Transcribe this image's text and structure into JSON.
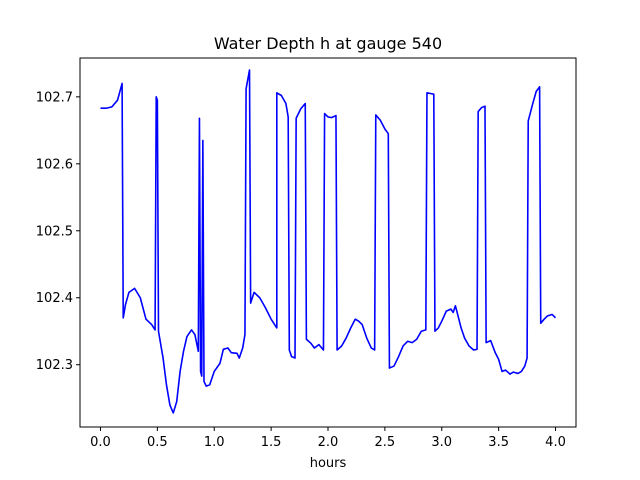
{
  "chart_data": {
    "type": "line",
    "title": "Water Depth h at gauge 540",
    "xlabel": "hours",
    "ylabel": "",
    "xlim": [
      -0.18,
      4.18
    ],
    "ylim": [
      102.207,
      102.758
    ],
    "xticks": [
      0.0,
      0.5,
      1.0,
      1.5,
      2.0,
      2.5,
      3.0,
      3.5,
      4.0
    ],
    "xtick_labels": [
      "0.0",
      "0.5",
      "1.0",
      "1.5",
      "2.0",
      "2.5",
      "3.0",
      "3.5",
      "4.0"
    ],
    "yticks": [
      102.3,
      102.4,
      102.5,
      102.6,
      102.7
    ],
    "ytick_labels": [
      "102.3",
      "102.4",
      "102.5",
      "102.6",
      "102.7"
    ],
    "grid": false,
    "series": [
      {
        "color": "#0000ff",
        "points": [
          [
            0.0,
            102.683
          ],
          [
            0.05,
            102.683
          ],
          [
            0.1,
            102.685
          ],
          [
            0.15,
            102.695
          ],
          [
            0.19,
            102.72
          ],
          [
            0.2,
            102.37
          ],
          [
            0.22,
            102.39
          ],
          [
            0.25,
            102.408
          ],
          [
            0.3,
            102.414
          ],
          [
            0.35,
            102.4
          ],
          [
            0.4,
            102.368
          ],
          [
            0.45,
            102.36
          ],
          [
            0.48,
            102.352
          ],
          [
            0.49,
            102.7
          ],
          [
            0.5,
            102.695
          ],
          [
            0.51,
            102.35
          ],
          [
            0.55,
            102.31
          ],
          [
            0.58,
            102.27
          ],
          [
            0.61,
            102.24
          ],
          [
            0.64,
            102.228
          ],
          [
            0.67,
            102.245
          ],
          [
            0.7,
            102.29
          ],
          [
            0.73,
            102.32
          ],
          [
            0.76,
            102.342
          ],
          [
            0.8,
            102.352
          ],
          [
            0.83,
            102.345
          ],
          [
            0.86,
            102.32
          ],
          [
            0.87,
            102.668
          ],
          [
            0.88,
            102.29
          ],
          [
            0.89,
            102.283
          ],
          [
            0.9,
            102.635
          ],
          [
            0.91,
            102.275
          ],
          [
            0.93,
            102.268
          ],
          [
            0.96,
            102.27
          ],
          [
            1.0,
            102.29
          ],
          [
            1.05,
            102.302
          ],
          [
            1.08,
            102.323
          ],
          [
            1.12,
            102.325
          ],
          [
            1.15,
            102.318
          ],
          [
            1.2,
            102.317
          ],
          [
            1.22,
            102.31
          ],
          [
            1.25,
            102.325
          ],
          [
            1.27,
            102.345
          ],
          [
            1.28,
            102.712
          ],
          [
            1.31,
            102.74
          ],
          [
            1.32,
            102.392
          ],
          [
            1.35,
            102.408
          ],
          [
            1.4,
            102.4
          ],
          [
            1.45,
            102.385
          ],
          [
            1.5,
            102.368
          ],
          [
            1.55,
            102.355
          ],
          [
            1.55,
            102.706
          ],
          [
            1.59,
            102.702
          ],
          [
            1.63,
            102.69
          ],
          [
            1.65,
            102.67
          ],
          [
            1.66,
            102.322
          ],
          [
            1.68,
            102.312
          ],
          [
            1.71,
            102.31
          ],
          [
            1.72,
            102.668
          ],
          [
            1.76,
            102.682
          ],
          [
            1.8,
            102.69
          ],
          [
            1.81,
            102.338
          ],
          [
            1.85,
            102.332
          ],
          [
            1.88,
            102.325
          ],
          [
            1.92,
            102.33
          ],
          [
            1.96,
            102.322
          ],
          [
            1.97,
            102.675
          ],
          [
            2.0,
            102.67
          ],
          [
            2.03,
            102.669
          ],
          [
            2.07,
            102.672
          ],
          [
            2.08,
            102.322
          ],
          [
            2.12,
            102.328
          ],
          [
            2.16,
            102.34
          ],
          [
            2.2,
            102.355
          ],
          [
            2.24,
            102.368
          ],
          [
            2.27,
            102.365
          ],
          [
            2.3,
            102.36
          ],
          [
            2.34,
            102.34
          ],
          [
            2.38,
            102.325
          ],
          [
            2.41,
            102.322
          ],
          [
            2.42,
            102.673
          ],
          [
            2.46,
            102.665
          ],
          [
            2.5,
            102.652
          ],
          [
            2.53,
            102.645
          ],
          [
            2.54,
            102.295
          ],
          [
            2.58,
            102.298
          ],
          [
            2.62,
            102.312
          ],
          [
            2.66,
            102.328
          ],
          [
            2.7,
            102.335
          ],
          [
            2.74,
            102.333
          ],
          [
            2.78,
            102.338
          ],
          [
            2.82,
            102.35
          ],
          [
            2.86,
            102.352
          ],
          [
            2.87,
            102.706
          ],
          [
            2.9,
            102.705
          ],
          [
            2.93,
            102.704
          ],
          [
            2.94,
            102.35
          ],
          [
            2.97,
            102.355
          ],
          [
            3.0,
            102.365
          ],
          [
            3.04,
            102.38
          ],
          [
            3.08,
            102.383
          ],
          [
            3.1,
            102.378
          ],
          [
            3.12,
            102.388
          ],
          [
            3.14,
            102.375
          ],
          [
            3.17,
            102.355
          ],
          [
            3.2,
            102.34
          ],
          [
            3.24,
            102.328
          ],
          [
            3.28,
            102.322
          ],
          [
            3.31,
            102.323
          ],
          [
            3.32,
            102.678
          ],
          [
            3.35,
            102.684
          ],
          [
            3.38,
            102.686
          ],
          [
            3.39,
            102.333
          ],
          [
            3.43,
            102.336
          ],
          [
            3.47,
            102.318
          ],
          [
            3.5,
            102.308
          ],
          [
            3.53,
            102.29
          ],
          [
            3.56,
            102.292
          ],
          [
            3.6,
            102.286
          ],
          [
            3.63,
            102.289
          ],
          [
            3.67,
            102.287
          ],
          [
            3.7,
            102.29
          ],
          [
            3.73,
            102.298
          ],
          [
            3.75,
            102.31
          ],
          [
            3.76,
            102.664
          ],
          [
            3.8,
            102.69
          ],
          [
            3.83,
            102.708
          ],
          [
            3.86,
            102.715
          ],
          [
            3.87,
            102.362
          ],
          [
            3.9,
            102.368
          ],
          [
            3.93,
            102.373
          ],
          [
            3.97,
            102.375
          ],
          [
            4.0,
            102.37
          ]
        ]
      }
    ]
  }
}
